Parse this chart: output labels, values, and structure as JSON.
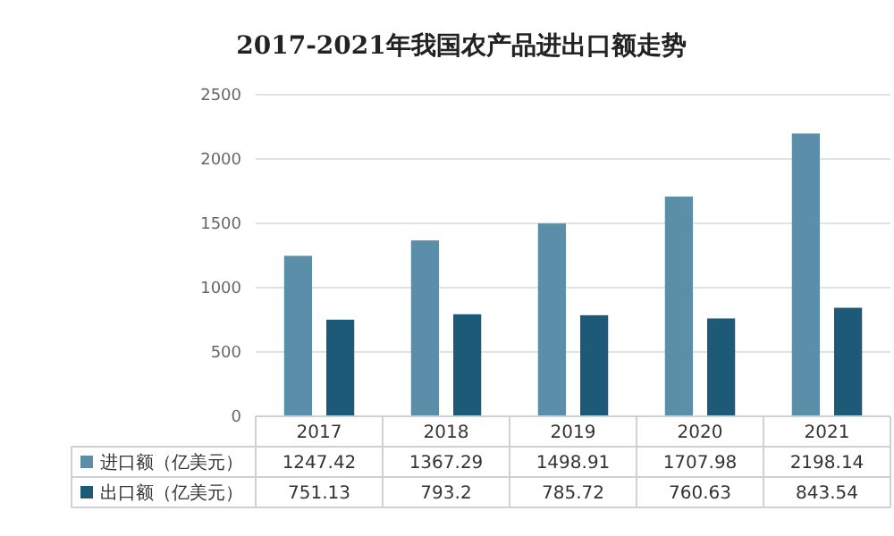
{
  "chart_data": {
    "type": "bar",
    "title": "2017-2021年我国农产品进出口额走势",
    "categories": [
      "2017",
      "2018",
      "2019",
      "2020",
      "2021"
    ],
    "series": [
      {
        "name": "进口额（亿美元）",
        "color": "#5b8ea8",
        "values": [
          1247.42,
          1367.29,
          1498.91,
          1707.98,
          2198.14
        ]
      },
      {
        "name": "出口额（亿美元）",
        "color": "#1d5a78",
        "values": [
          751.13,
          793.2,
          785.72,
          760.63,
          843.54
        ]
      }
    ],
    "ylim": [
      0,
      2500
    ],
    "yticks": [
      0,
      500,
      1000,
      1500,
      2000,
      2500
    ],
    "grid": "y",
    "data_labels": true,
    "legend": "bottom"
  }
}
